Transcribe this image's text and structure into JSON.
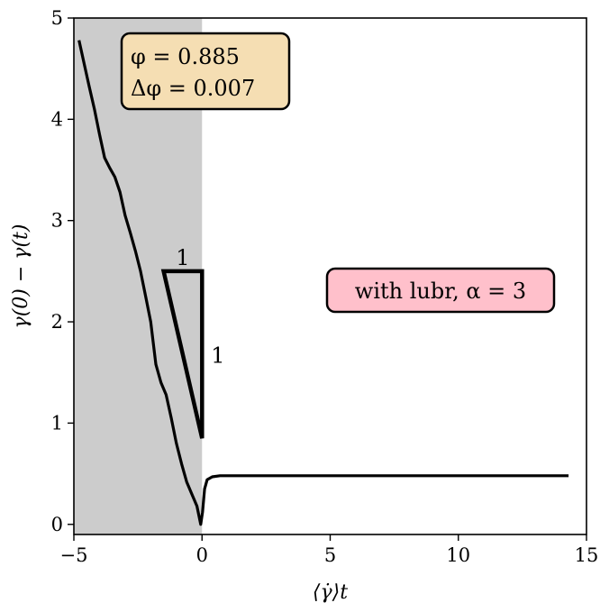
{
  "chart_data": {
    "type": "line",
    "xlabel": "⟨γ̇⟩t",
    "ylabel": "γ(0) − γ(t)",
    "xlim": [
      -5,
      15
    ],
    "ylim": [
      -0.1,
      5
    ],
    "xticks": [
      -5,
      0,
      5,
      10,
      15
    ],
    "xtick_labels": [
      "−5",
      "0",
      "5",
      "10",
      "15"
    ],
    "yticks": [
      0,
      1,
      2,
      3,
      4,
      5
    ],
    "ytick_labels": [
      "0",
      "1",
      "2",
      "3",
      "4",
      "5"
    ],
    "grid": false,
    "shaded_region": {
      "x": [
        -5,
        0
      ],
      "color": "#cccccc"
    },
    "series": [
      {
        "color": "#000000",
        "points": [
          [
            -4.8,
            4.78
          ],
          [
            -4.6,
            4.55
          ],
          [
            -4.4,
            4.32
          ],
          [
            -4.2,
            4.1
          ],
          [
            -4.0,
            3.85
          ],
          [
            -3.8,
            3.62
          ],
          [
            -3.6,
            3.52
          ],
          [
            -3.4,
            3.43
          ],
          [
            -3.2,
            3.28
          ],
          [
            -3.0,
            3.05
          ],
          [
            -2.8,
            2.88
          ],
          [
            -2.6,
            2.7
          ],
          [
            -2.4,
            2.5
          ],
          [
            -2.2,
            2.25
          ],
          [
            -2.0,
            2.0
          ],
          [
            -1.8,
            1.58
          ],
          [
            -1.6,
            1.4
          ],
          [
            -1.4,
            1.28
          ],
          [
            -1.2,
            1.05
          ],
          [
            -1.0,
            0.8
          ],
          [
            -0.8,
            0.6
          ],
          [
            -0.6,
            0.42
          ],
          [
            -0.4,
            0.3
          ],
          [
            -0.2,
            0.18
          ],
          [
            -0.05,
            0.0
          ],
          [
            0.02,
            0.12
          ],
          [
            0.1,
            0.35
          ],
          [
            0.2,
            0.44
          ],
          [
            0.4,
            0.47
          ],
          [
            0.7,
            0.48
          ],
          [
            2,
            0.48
          ],
          [
            5,
            0.48
          ],
          [
            10,
            0.48
          ],
          [
            14.3,
            0.48
          ]
        ]
      }
    ],
    "slope_triangle": {
      "vertices": [
        [
          -1.5,
          2.5
        ],
        [
          0,
          2.5
        ],
        [
          0,
          0.85
        ]
      ],
      "horizontal_label": "1",
      "vertical_label": "1",
      "color": "#000000"
    },
    "annotations": [
      {
        "lines": [
          "φ = 0.885",
          "Δφ = 0.007"
        ],
        "position": "top-left",
        "facecolor": "#f5deb3"
      },
      {
        "lines": [
          "with lubr, α = 3"
        ],
        "position": "center-right",
        "facecolor": "#ffc0cb"
      }
    ]
  }
}
